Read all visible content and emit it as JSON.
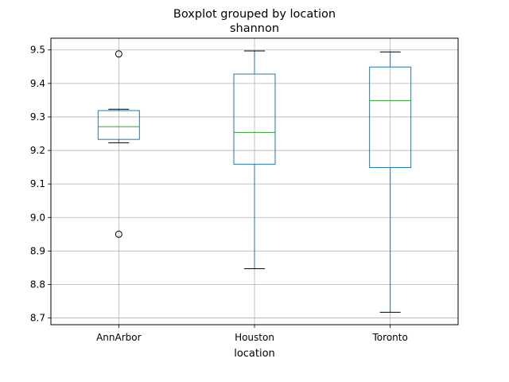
{
  "chart_data": {
    "type": "boxplot",
    "title": "Boxplot grouped by location",
    "subtitle": "shannon",
    "xlabel": "location",
    "ylabel": "",
    "ylim": [
      8.68,
      9.535
    ],
    "yticks": [
      8.7,
      8.8,
      8.9,
      9.0,
      9.1,
      9.2,
      9.3,
      9.4,
      9.5
    ],
    "ytick_labels": [
      "8.7",
      "8.8",
      "8.9",
      "9.0",
      "9.1",
      "9.2",
      "9.3",
      "9.4",
      "9.5"
    ],
    "grid": true,
    "categories": [
      "AnnArbor",
      "Houston",
      "Toronto"
    ],
    "boxes": [
      {
        "name": "AnnArbor",
        "whisker_low": 9.223,
        "q1": 9.233,
        "median": 9.271,
        "q3": 9.319,
        "whisker_high": 9.323,
        "outliers": [
          9.488,
          8.95
        ]
      },
      {
        "name": "Houston",
        "whisker_low": 8.847,
        "q1": 9.159,
        "median": 9.254,
        "q3": 9.428,
        "whisker_high": 9.497,
        "outliers": []
      },
      {
        "name": "Toronto",
        "whisker_low": 8.717,
        "q1": 9.149,
        "median": 9.349,
        "q3": 9.449,
        "whisker_high": 9.494,
        "outliers": []
      }
    ],
    "colors": {
      "box": "#1f77b4",
      "median": "#2ca02c",
      "whisker": "#1f77b4",
      "cap": "#000000",
      "grid": "#b0b0b0",
      "outlier": "#000000"
    }
  }
}
